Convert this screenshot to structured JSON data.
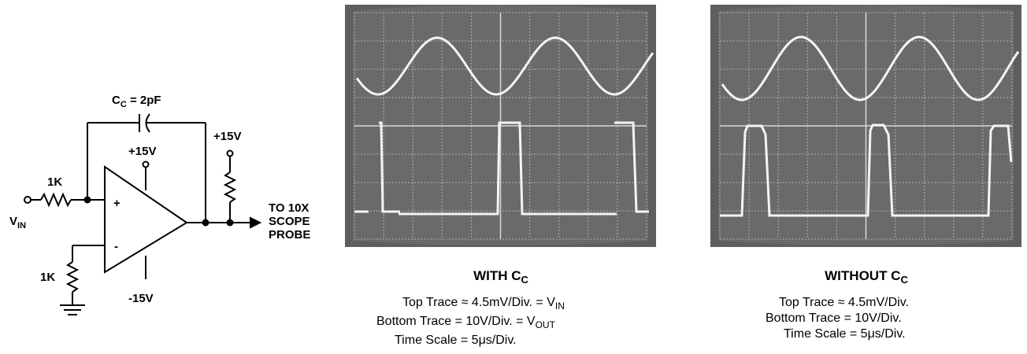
{
  "schematic": {
    "cap_label": "C",
    "cap_label_sub": "C",
    "cap_value": " = 2pF",
    "supply_pos_op": "+15V",
    "supply_pos_pullup": "+15V",
    "supply_neg_op": "-15V",
    "r_in_label": "1K",
    "r_bottom_label": "1K",
    "vin_label": "V",
    "vin_sub": "IN",
    "plus_label": "+",
    "minus_label": "-",
    "probe_line1": "TO 10X",
    "probe_line2": "SCOPE",
    "probe_line3": "PROBE"
  },
  "with_cc": {
    "title": "WITH C",
    "title_sub": "C",
    "top_trace": "Top Trace ≈ 4.5mV/Div. = V",
    "top_trace_sub": "IN",
    "bottom_trace": "Bottom Trace = 10V/Div. = V",
    "bottom_trace_sub": "OUT",
    "time_scale": "Time Scale = 5μs/Div."
  },
  "without_cc": {
    "title": "WITHOUT C",
    "title_sub": "C",
    "top_trace": "Top Trace ≈ 4.5mV/Div.",
    "bottom_trace": "Bottom Trace = 10V/Div.",
    "time_scale": "Time Scale = 5μs/Div."
  },
  "colors": {
    "scope_bg": "#5e5e5e",
    "grid": "#c8c8c8",
    "trace": "#f4f4f4"
  }
}
